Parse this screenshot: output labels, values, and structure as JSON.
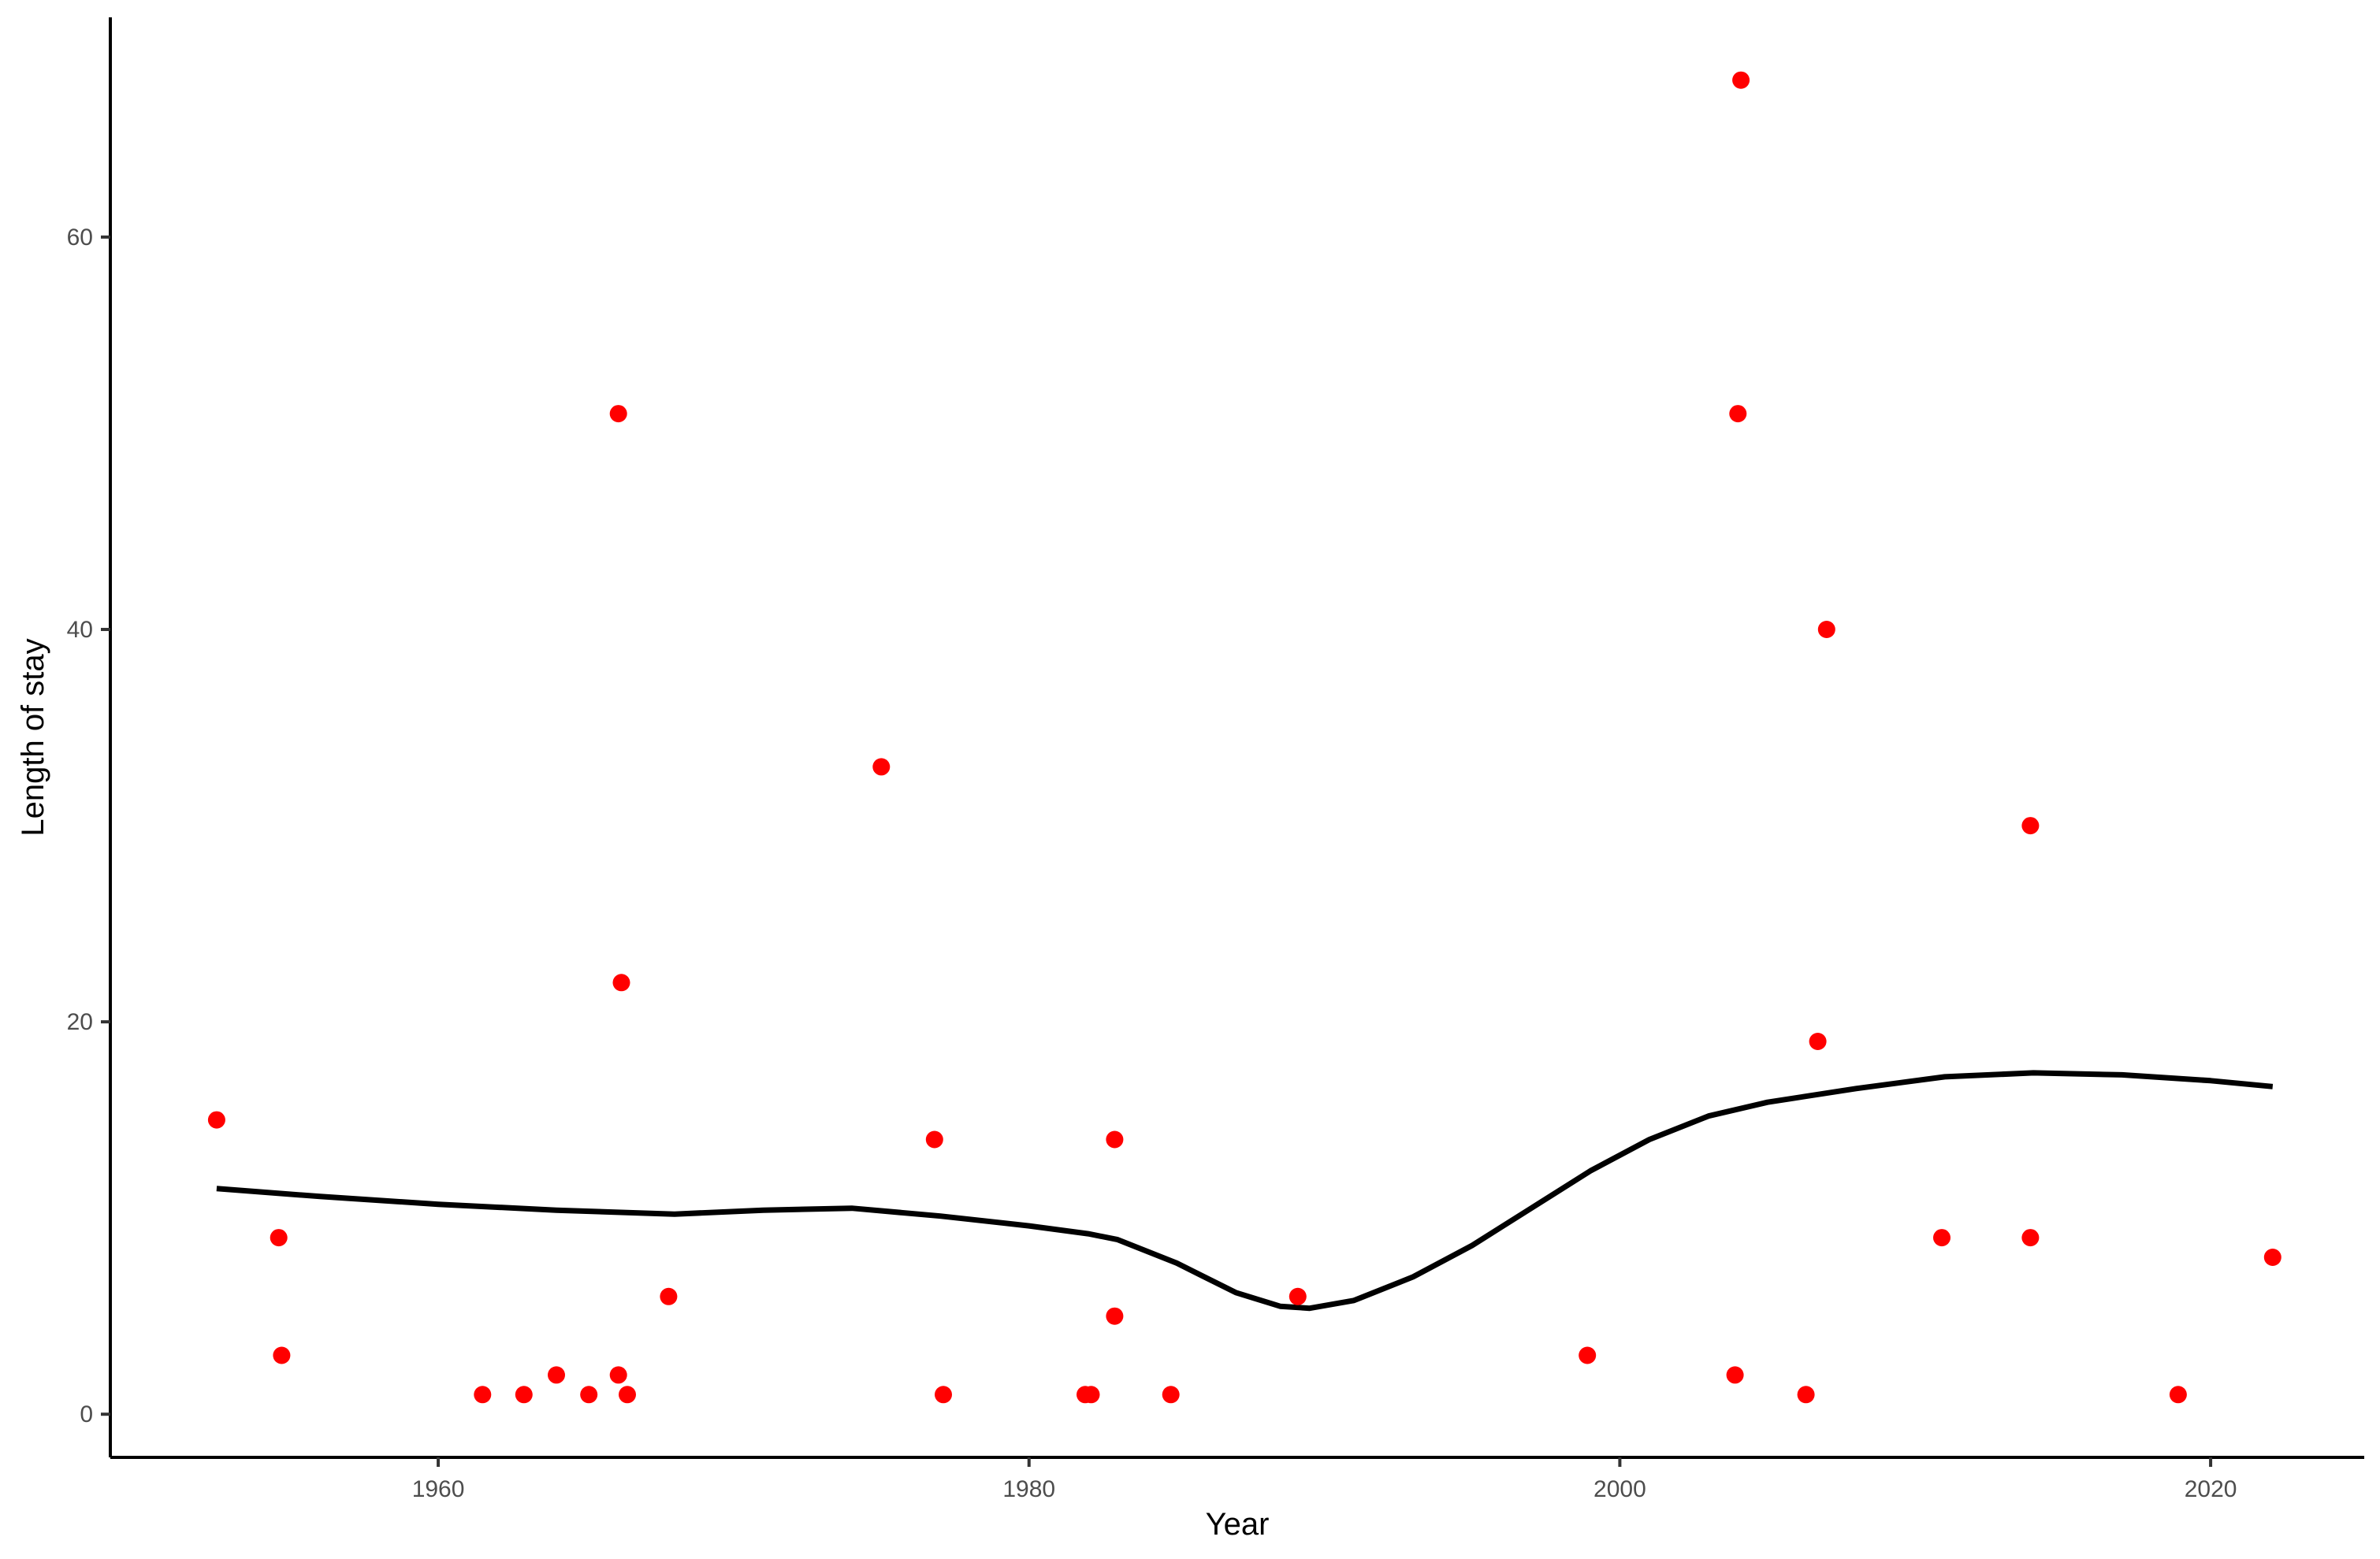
{
  "chart_data": {
    "type": "scatter",
    "title": "",
    "xlabel": "Year",
    "ylabel": "Length of stay",
    "xlim": [
      1948.9,
      2025.2
    ],
    "ylim": [
      -2.2,
      71.2
    ],
    "x_ticks": [
      1960,
      1980,
      2000,
      2020
    ],
    "y_ticks": [
      0,
      20,
      40,
      60
    ],
    "grid": false,
    "legend": "none",
    "colors": {
      "points": "#ff0000",
      "smooth": "#000000",
      "axis": "#000000",
      "tick_text": "#4d4d4d"
    },
    "series": [
      {
        "type": "scatter",
        "points": [
          {
            "x": 1952.5,
            "y": 15
          },
          {
            "x": 1954.6,
            "y": 9
          },
          {
            "x": 1954.7,
            "y": 3
          },
          {
            "x": 1961.5,
            "y": 1
          },
          {
            "x": 1962.9,
            "y": 1
          },
          {
            "x": 1964.0,
            "y": 2
          },
          {
            "x": 1965.1,
            "y": 1
          },
          {
            "x": 1966.1,
            "y": 51
          },
          {
            "x": 1966.2,
            "y": 22
          },
          {
            "x": 1966.1,
            "y": 2
          },
          {
            "x": 1966.4,
            "y": 1
          },
          {
            "x": 1967.8,
            "y": 6
          },
          {
            "x": 1975.0,
            "y": 33
          },
          {
            "x": 1976.8,
            "y": 14
          },
          {
            "x": 1977.1,
            "y": 1
          },
          {
            "x": 1981.9,
            "y": 1
          },
          {
            "x": 1982.1,
            "y": 1
          },
          {
            "x": 1982.9,
            "y": 14
          },
          {
            "x": 1982.9,
            "y": 5
          },
          {
            "x": 1984.8,
            "y": 1
          },
          {
            "x": 1989.1,
            "y": 6
          },
          {
            "x": 1998.9,
            "y": 3
          },
          {
            "x": 2004.1,
            "y": 68
          },
          {
            "x": 2004.0,
            "y": 51
          },
          {
            "x": 2003.9,
            "y": 2
          },
          {
            "x": 2006.3,
            "y": 1
          },
          {
            "x": 2006.7,
            "y": 19
          },
          {
            "x": 2007.0,
            "y": 40
          },
          {
            "x": 2010.9,
            "y": 9
          },
          {
            "x": 2013.9,
            "y": 30
          },
          {
            "x": 2013.9,
            "y": 9
          },
          {
            "x": 2018.9,
            "y": 1
          },
          {
            "x": 2022.1,
            "y": 8
          }
        ]
      },
      {
        "type": "line",
        "points": [
          {
            "x": 1952.5,
            "y": 11.5
          },
          {
            "x": 1956,
            "y": 11.1
          },
          {
            "x": 1960,
            "y": 10.7
          },
          {
            "x": 1964,
            "y": 10.4
          },
          {
            "x": 1968,
            "y": 10.2
          },
          {
            "x": 1971,
            "y": 10.4
          },
          {
            "x": 1974,
            "y": 10.5
          },
          {
            "x": 1977,
            "y": 10.1
          },
          {
            "x": 1980,
            "y": 9.6
          },
          {
            "x": 1982,
            "y": 9.2
          },
          {
            "x": 1983,
            "y": 8.9
          },
          {
            "x": 1985,
            "y": 7.7
          },
          {
            "x": 1987,
            "y": 6.2
          },
          {
            "x": 1988.5,
            "y": 5.5
          },
          {
            "x": 1989.5,
            "y": 5.4
          },
          {
            "x": 1991,
            "y": 5.8
          },
          {
            "x": 1993,
            "y": 7.0
          },
          {
            "x": 1995,
            "y": 8.6
          },
          {
            "x": 1997,
            "y": 10.5
          },
          {
            "x": 1999,
            "y": 12.4
          },
          {
            "x": 2001,
            "y": 14.0
          },
          {
            "x": 2003,
            "y": 15.2
          },
          {
            "x": 2005,
            "y": 15.9
          },
          {
            "x": 2008,
            "y": 16.6
          },
          {
            "x": 2011,
            "y": 17.2
          },
          {
            "x": 2014,
            "y": 17.4
          },
          {
            "x": 2017,
            "y": 17.3
          },
          {
            "x": 2020,
            "y": 17.0
          },
          {
            "x": 2022.1,
            "y": 16.7
          }
        ]
      }
    ]
  }
}
